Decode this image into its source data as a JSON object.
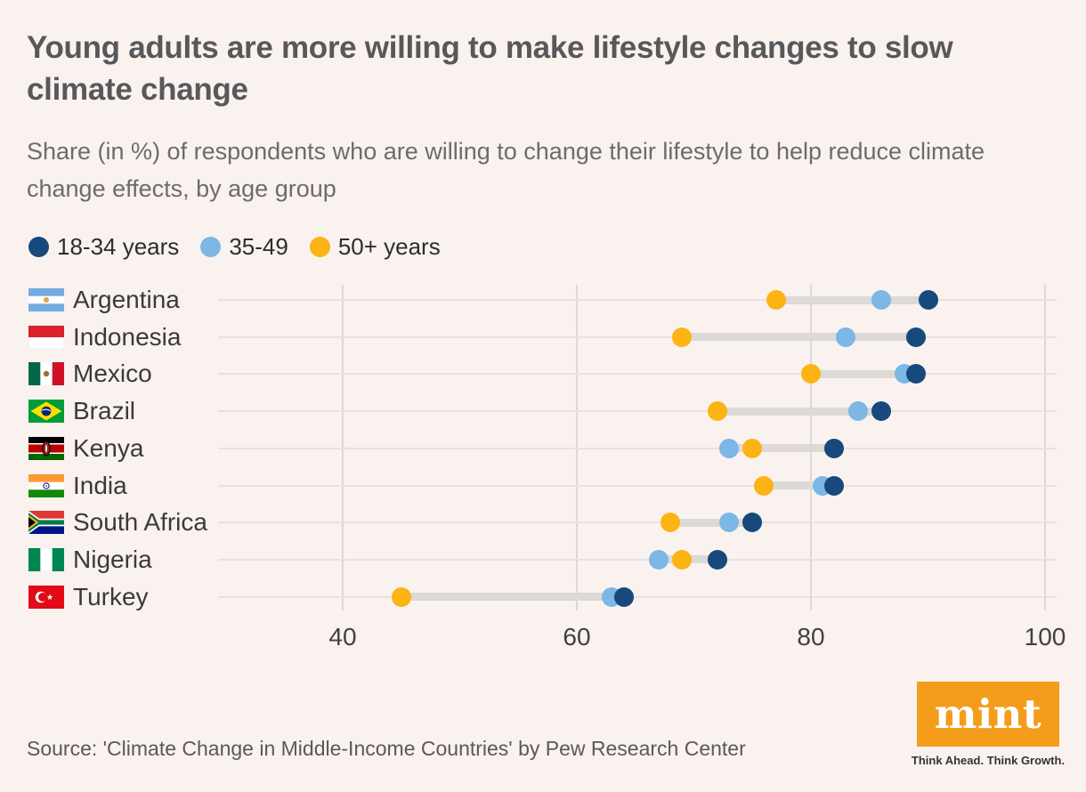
{
  "header": {
    "title": "Young adults are more willing to make lifestyle changes to slow climate change",
    "subtitle": "Share (in %) of respondents who are willing to change their lifestyle to help reduce climate change effects, by age group"
  },
  "legend": {
    "items": [
      {
        "key": "18-34",
        "label": "18-34 years",
        "color": "#17497c"
      },
      {
        "key": "35-49",
        "label": "35-49",
        "color": "#7cb7e5"
      },
      {
        "key": "50plus",
        "label": "50+ years",
        "color": "#fcb414"
      }
    ]
  },
  "chart_data": {
    "type": "scatter",
    "subtype": "dumbbell-dot-plot",
    "orientation": "horizontal",
    "categories": [
      "Argentina",
      "Indonesia",
      "Mexico",
      "Brazil",
      "Kenya",
      "India",
      "South Africa",
      "Nigeria",
      "Turkey"
    ],
    "flags": [
      "argentina-flag-icon",
      "indonesia-flag-icon",
      "mexico-flag-icon",
      "brazil-flag-icon",
      "kenya-flag-icon",
      "india-flag-icon",
      "south-africa-flag-icon",
      "nigeria-flag-icon",
      "turkey-flag-icon"
    ],
    "series": [
      {
        "name": "18-34 years",
        "key": "18-34",
        "color": "#17497c",
        "values": [
          90,
          89,
          89,
          86,
          82,
          82,
          75,
          72,
          64
        ]
      },
      {
        "name": "35-49",
        "key": "35-49",
        "color": "#7cb7e5",
        "values": [
          86,
          83,
          88,
          84,
          73,
          81,
          73,
          67,
          63
        ]
      },
      {
        "name": "50+ years",
        "key": "50plus",
        "color": "#fcb414",
        "values": [
          77,
          69,
          80,
          72,
          75,
          76,
          68,
          69,
          45
        ]
      }
    ],
    "x_ticks": [
      40,
      60,
      80,
      100
    ],
    "xlim": [
      29,
      103
    ],
    "grid": true,
    "legend_position": "top",
    "connector_color": "#dcd9d6",
    "title": "Young adults are more willing to make lifestyle changes to slow climate change",
    "xlabel": "",
    "ylabel": ""
  },
  "footer": {
    "source": "Source: 'Climate Change in Middle-Income Countries' by Pew Research Center",
    "brand": {
      "name": "mint",
      "tagline": "Think Ahead. Think Growth."
    }
  }
}
